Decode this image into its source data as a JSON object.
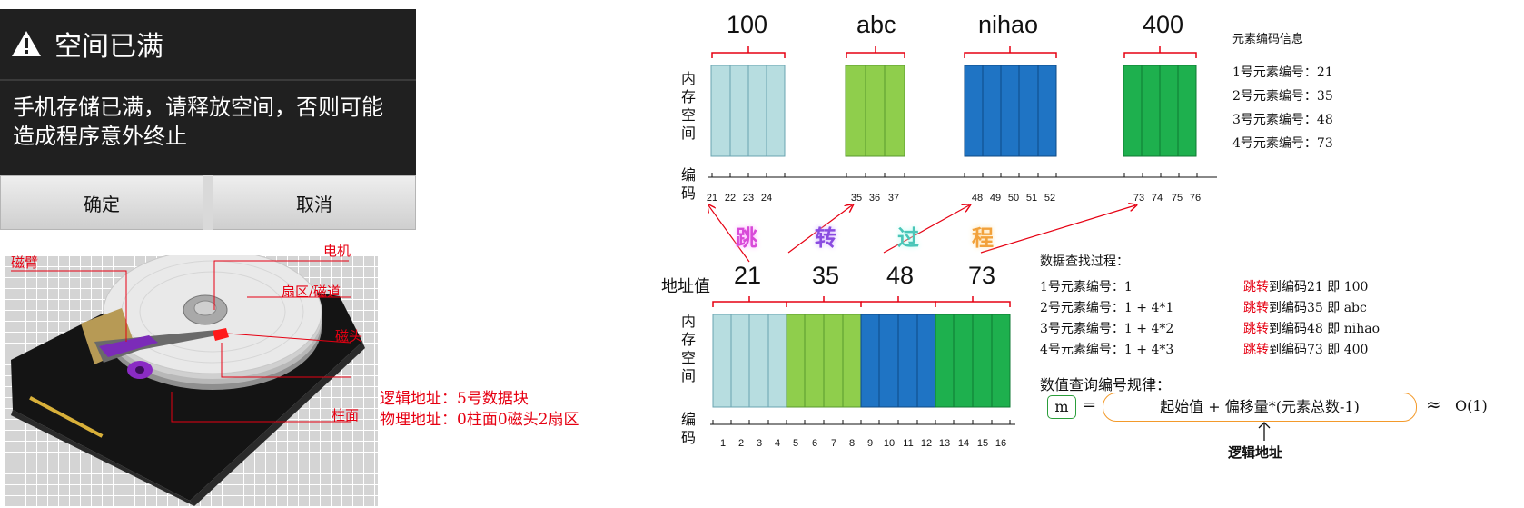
{
  "dialog": {
    "title": "空间已满",
    "message": "手机存储已满，请释放空间，否则可能造成程序意外终止",
    "confirm_label": "确定",
    "cancel_label": "取消"
  },
  "hdd": {
    "label_arm": "磁臂",
    "label_motor": "电机",
    "label_sector_track": "扇区/磁道",
    "label_head": "磁头",
    "label_logical": "逻辑地址：5号数据块",
    "label_physical": "物理地址：0柱面0磁头2扇区",
    "label_cylinder": "柱面"
  },
  "top_diagram": {
    "group_labels": [
      "100",
      "abc",
      "nihao",
      "400"
    ],
    "memory_label": [
      "内",
      "存",
      "空",
      "间"
    ],
    "code_label": [
      "编",
      "码"
    ],
    "ticks": [
      "21",
      "22",
      "23",
      "24",
      "35",
      "36",
      "37",
      "48",
      "49",
      "50",
      "51",
      "52",
      "73",
      "74",
      "75",
      "76"
    ],
    "info_title": "元素编码信息",
    "info_lines": [
      "1号元素编号：21",
      "2号元素编号：35",
      "3号元素编号：48",
      "4号元素编号：73"
    ]
  },
  "jump": {
    "chars": [
      "跳",
      "转",
      "过",
      "程"
    ]
  },
  "bottom_diagram": {
    "address_label": "地址值",
    "address_values": [
      "21",
      "35",
      "48",
      "73"
    ],
    "memory_label": [
      "内",
      "存",
      "空",
      "间"
    ],
    "code_label": [
      "编",
      "码"
    ],
    "ticks": [
      "1",
      "2",
      "3",
      "4",
      "5",
      "6",
      "7",
      "8",
      "9",
      "10",
      "11",
      "12",
      "13",
      "14",
      "15",
      "16"
    ]
  },
  "lookup": {
    "title": "数据查找过程：",
    "rows": [
      {
        "left": "1号元素编号：1",
        "jump": "跳转",
        "right": "到编码21 即 100"
      },
      {
        "left": "2号元素编号：1 + 4*1",
        "jump": "跳转",
        "right": "到编码35 即 abc"
      },
      {
        "left": "3号元素编号：1 + 4*2",
        "jump": "跳转",
        "right": "到编码48 即 nihao"
      },
      {
        "left": "4号元素编号：1 + 4*3",
        "jump": "跳转",
        "right": "到编码73 即 400"
      }
    ]
  },
  "formula": {
    "title": "数值查询编号规律：",
    "m": "m",
    "equals": "=",
    "body": "起始值 + 偏移量*(元素总数-1)",
    "approx": "≈",
    "complexity": "O(1)",
    "logical_address": "逻辑地址"
  },
  "colors": {
    "light_blue": "#b7dde0",
    "green_light": "#8fce4c",
    "blue": "#1f74c4",
    "green": "#1eb04e",
    "red": "#e60012",
    "orange": "#f39a2b"
  },
  "icons": {
    "warning": "warning-icon",
    "up_arrow": "up-arrow-icon"
  }
}
